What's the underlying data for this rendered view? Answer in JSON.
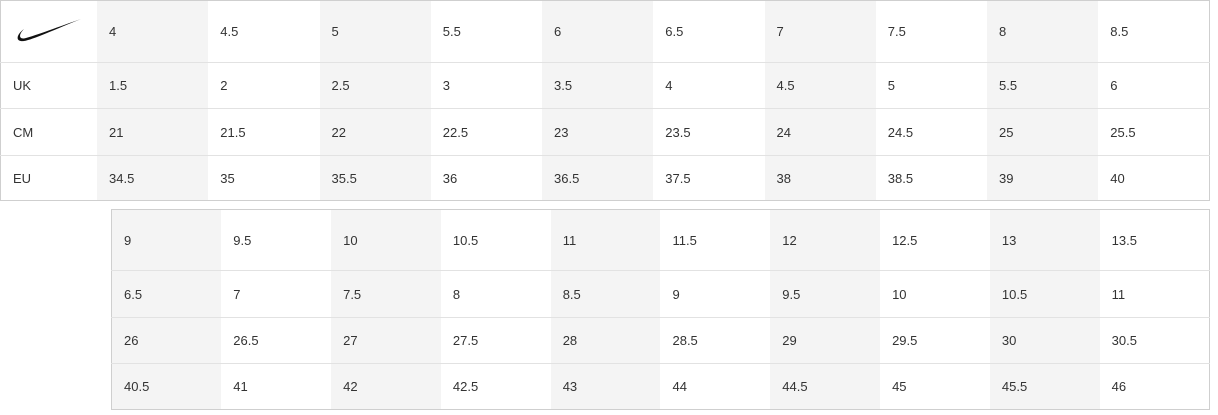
{
  "brand": "Nike",
  "table1": {
    "rows": [
      {
        "label": "",
        "values": [
          "4",
          "4.5",
          "5",
          "5.5",
          "6",
          "6.5",
          "7",
          "7.5",
          "8",
          "8.5"
        ]
      },
      {
        "label": "UK",
        "values": [
          "1.5",
          "2",
          "2.5",
          "3",
          "3.5",
          "4",
          "4.5",
          "5",
          "5.5",
          "6"
        ]
      },
      {
        "label": "CM",
        "values": [
          "21",
          "21.5",
          "22",
          "22.5",
          "23",
          "23.5",
          "24",
          "24.5",
          "25",
          "25.5"
        ]
      },
      {
        "label": "EU",
        "values": [
          "34.5",
          "35",
          "35.5",
          "36",
          "36.5",
          "37.5",
          "38",
          "38.5",
          "39",
          "40"
        ]
      }
    ]
  },
  "table2": {
    "rows": [
      {
        "values": [
          "9",
          "9.5",
          "10",
          "10.5",
          "11",
          "11.5",
          "12",
          "12.5",
          "13",
          "13.5"
        ]
      },
      {
        "values": [
          "6.5",
          "7",
          "7.5",
          "8",
          "8.5",
          "9",
          "9.5",
          "10",
          "10.5",
          "11"
        ]
      },
      {
        "values": [
          "26",
          "26.5",
          "27",
          "27.5",
          "28",
          "28.5",
          "29",
          "29.5",
          "30",
          "30.5"
        ]
      },
      {
        "values": [
          "40.5",
          "41",
          "42",
          "42.5",
          "43",
          "44",
          "44.5",
          "45",
          "45.5",
          "46"
        ]
      }
    ]
  }
}
